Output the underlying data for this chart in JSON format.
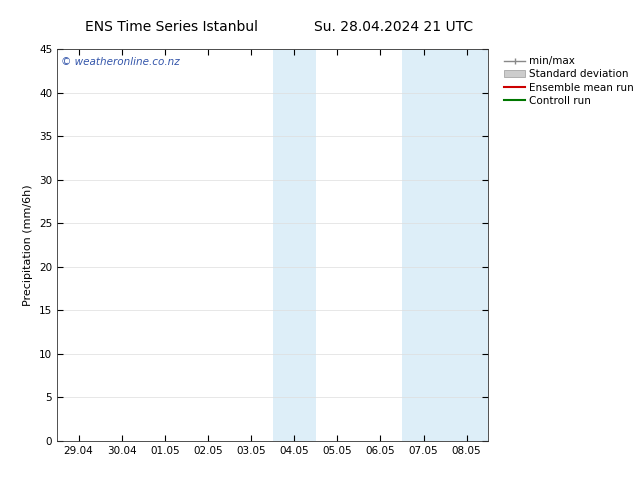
{
  "title_left": "ENS Time Series Istanbul",
  "title_right": "Su. 28.04.2024 21 UTC",
  "ylabel": "Precipitation (mm/6h)",
  "ylim": [
    0,
    45
  ],
  "yticks": [
    0,
    5,
    10,
    15,
    20,
    25,
    30,
    35,
    40,
    45
  ],
  "xtick_labels": [
    "29.04",
    "30.04",
    "01.05",
    "02.05",
    "03.05",
    "04.05",
    "05.05",
    "06.05",
    "07.05",
    "08.05"
  ],
  "xtick_positions": [
    0,
    1,
    2,
    3,
    4,
    5,
    6,
    7,
    8,
    9
  ],
  "xlim": [
    -0.5,
    9.5
  ],
  "shaded_bands": [
    {
      "xmin": 4.5,
      "xmax": 5.5
    },
    {
      "xmin": 7.5,
      "xmax": 9.5
    }
  ],
  "shade_color": "#ddeef8",
  "watermark": "© weatheronline.co.nz",
  "watermark_color": "#3355aa",
  "legend_items": [
    {
      "label": "min/max",
      "color": "#888888",
      "type": "minmax"
    },
    {
      "label": "Standard deviation",
      "color": "#cccccc",
      "type": "fill"
    },
    {
      "label": "Ensemble mean run",
      "color": "#cc0000",
      "type": "line"
    },
    {
      "label": "Controll run",
      "color": "#007700",
      "type": "line"
    }
  ],
  "background_color": "#ffffff",
  "grid_color": "#dddddd",
  "title_fontsize": 10,
  "axis_fontsize": 8,
  "tick_fontsize": 7.5,
  "legend_fontsize": 7.5
}
